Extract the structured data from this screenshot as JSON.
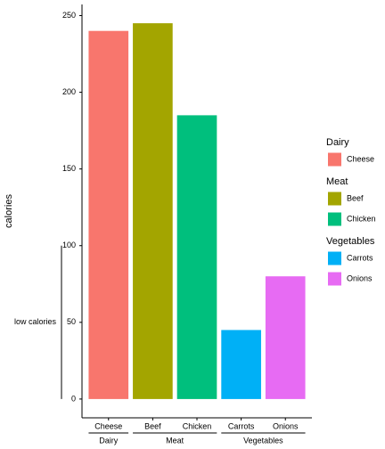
{
  "chart_data": {
    "type": "bar",
    "categories": [
      "Cheese",
      "Beef",
      "Chicken",
      "Carrots",
      "Onions"
    ],
    "category_groups": [
      "Dairy",
      "Meat",
      "Meat",
      "Vegetables",
      "Vegetables"
    ],
    "values": [
      240,
      245,
      185,
      45,
      80
    ],
    "colors": [
      "#F8766D",
      "#A3A500",
      "#00BF7D",
      "#00B0F6",
      "#E76BF3"
    ],
    "y_label": "calories",
    "ylim": [
      -12.25,
      257.25
    ],
    "yticks": [
      0,
      50,
      100,
      150,
      200,
      250
    ],
    "grid": false,
    "annotation": {
      "text": "low calories",
      "range": [
        0,
        100
      ]
    },
    "legend_position": "right"
  }
}
